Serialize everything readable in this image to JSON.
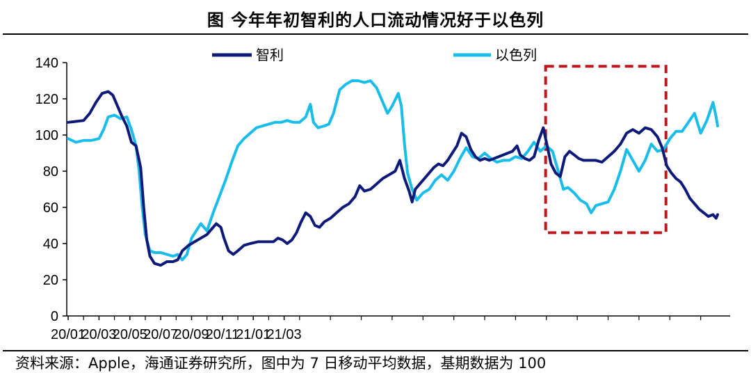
{
  "title": "图 今年年初智利的人口流动情况好于以色列",
  "source": "资料来源：Apple，海通证券研究所，图中为 7 日移动平均数据，基期数据为 100",
  "chart_data": {
    "type": "line",
    "title": "图 今年年初智利的人口流动情况好于以色列",
    "xlabel": "",
    "ylabel": "",
    "ylim": [
      0,
      140
    ],
    "yticks": [
      0,
      20,
      40,
      60,
      80,
      100,
      120,
      140
    ],
    "xtick_labels": [
      "20/01",
      "20/03",
      "20/05",
      "20/07",
      "20/09",
      "20/11",
      "21/01",
      "21/03"
    ],
    "grid": false,
    "legend_placement": "top",
    "highlight_box": {
      "x_start": "20/12",
      "x_end": "21/02",
      "y_range": [
        46,
        138
      ],
      "color": "#c0161c",
      "style": "dashed"
    },
    "series": [
      {
        "name": "智利",
        "color": "#0d1a7a",
        "points": [
          [
            0.0,
            107
          ],
          [
            0.5,
            107.5
          ],
          [
            1.0,
            108
          ],
          [
            1.4,
            112
          ],
          [
            1.8,
            118
          ],
          [
            2.2,
            123
          ],
          [
            2.6,
            124
          ],
          [
            2.9,
            122
          ],
          [
            3.2,
            116
          ],
          [
            3.5,
            110
          ],
          [
            3.8,
            105
          ],
          [
            4.1,
            96
          ],
          [
            4.4,
            94
          ],
          [
            4.7,
            82
          ],
          [
            4.9,
            60
          ],
          [
            5.1,
            42
          ],
          [
            5.3,
            33
          ],
          [
            5.6,
            29
          ],
          [
            6.0,
            28
          ],
          [
            6.4,
            30
          ],
          [
            6.8,
            30
          ],
          [
            7.1,
            31
          ],
          [
            7.4,
            36
          ],
          [
            7.8,
            39
          ],
          [
            8.2,
            41
          ],
          [
            8.6,
            43
          ],
          [
            9.0,
            45
          ],
          [
            9.3,
            48
          ],
          [
            9.6,
            51
          ],
          [
            9.9,
            49
          ],
          [
            10.1,
            43
          ],
          [
            10.4,
            36
          ],
          [
            10.7,
            34
          ],
          [
            11.0,
            36
          ],
          [
            11.4,
            39
          ],
          [
            11.8,
            40
          ],
          [
            12.3,
            41
          ],
          [
            12.8,
            41
          ],
          [
            13.3,
            41
          ],
          [
            13.6,
            43
          ],
          [
            13.9,
            42
          ],
          [
            14.2,
            40
          ],
          [
            14.5,
            42
          ],
          [
            14.8,
            46
          ],
          [
            15.1,
            52
          ],
          [
            15.4,
            57
          ],
          [
            15.7,
            55
          ],
          [
            16.0,
            50
          ],
          [
            16.3,
            49
          ],
          [
            16.6,
            52
          ],
          [
            17.0,
            54
          ],
          [
            17.4,
            57
          ],
          [
            17.8,
            60
          ],
          [
            18.2,
            62
          ],
          [
            18.6,
            66
          ],
          [
            18.9,
            72
          ],
          [
            19.2,
            69
          ],
          [
            19.6,
            70
          ],
          [
            20.0,
            73
          ],
          [
            20.4,
            76
          ],
          [
            20.8,
            78
          ],
          [
            21.2,
            80
          ],
          [
            21.5,
            86
          ],
          [
            21.8,
            76
          ],
          [
            22.1,
            69
          ],
          [
            22.3,
            63
          ],
          [
            22.5,
            70
          ],
          [
            22.8,
            73
          ],
          [
            23.1,
            76
          ],
          [
            23.4,
            79
          ],
          [
            23.7,
            82
          ],
          [
            24.0,
            84
          ],
          [
            24.3,
            83
          ],
          [
            24.6,
            86
          ],
          [
            24.9,
            90
          ],
          [
            25.2,
            94
          ],
          [
            25.5,
            101
          ],
          [
            25.8,
            99
          ],
          [
            26.1,
            92
          ],
          [
            26.4,
            88
          ],
          [
            26.7,
            86
          ],
          [
            27.0,
            87
          ],
          [
            27.3,
            86
          ],
          [
            27.6,
            87
          ],
          [
            27.9,
            88
          ],
          [
            28.2,
            89
          ],
          [
            28.5,
            90
          ],
          [
            28.8,
            91
          ],
          [
            29.1,
            94
          ],
          [
            29.3,
            89
          ],
          [
            29.6,
            87
          ],
          [
            29.9,
            86
          ],
          [
            30.2,
            88
          ],
          [
            30.5,
            97
          ],
          [
            30.8,
            104
          ],
          [
            31.0,
            96
          ],
          [
            31.3,
            84
          ],
          [
            31.6,
            79
          ],
          [
            31.9,
            77
          ],
          [
            32.2,
            88
          ],
          [
            32.5,
            91
          ],
          [
            32.8,
            89
          ],
          [
            33.1,
            87
          ],
          [
            33.4,
            86
          ],
          [
            33.8,
            86
          ],
          [
            34.2,
            86
          ],
          [
            34.6,
            85
          ],
          [
            35.0,
            88
          ],
          [
            35.4,
            91
          ],
          [
            35.8,
            95
          ],
          [
            36.2,
            101
          ],
          [
            36.6,
            103
          ],
          [
            37.0,
            101
          ],
          [
            37.4,
            104
          ],
          [
            37.8,
            103
          ],
          [
            38.2,
            99
          ],
          [
            38.5,
            93
          ],
          [
            38.8,
            83
          ],
          [
            39.1,
            79
          ],
          [
            39.4,
            76
          ],
          [
            39.7,
            74
          ],
          [
            40.0,
            70
          ],
          [
            40.3,
            65
          ],
          [
            40.6,
            62
          ],
          [
            40.9,
            59
          ],
          [
            41.2,
            57
          ],
          [
            41.5,
            55
          ],
          [
            41.8,
            56
          ],
          [
            42.0,
            54
          ],
          [
            42.1,
            56
          ]
        ]
      },
      {
        "name": "以色列",
        "color": "#19bdea",
        "points": [
          [
            0.0,
            98
          ],
          [
            0.5,
            96
          ],
          [
            1.0,
            97
          ],
          [
            1.5,
            97
          ],
          [
            2.0,
            98
          ],
          [
            2.3,
            103
          ],
          [
            2.6,
            110
          ],
          [
            3.0,
            111
          ],
          [
            3.4,
            109
          ],
          [
            3.8,
            110
          ],
          [
            4.1,
            103
          ],
          [
            4.4,
            94
          ],
          [
            4.6,
            80
          ],
          [
            4.8,
            60
          ],
          [
            5.0,
            45
          ],
          [
            5.3,
            36
          ],
          [
            5.6,
            35
          ],
          [
            6.0,
            35
          ],
          [
            6.4,
            34
          ],
          [
            6.8,
            33
          ],
          [
            7.1,
            34
          ],
          [
            7.4,
            31
          ],
          [
            7.7,
            34
          ],
          [
            8.0,
            43
          ],
          [
            8.3,
            47
          ],
          [
            8.6,
            51
          ],
          [
            9.0,
            47
          ],
          [
            9.4,
            57
          ],
          [
            9.8,
            66
          ],
          [
            10.2,
            75
          ],
          [
            10.6,
            85
          ],
          [
            11.0,
            94
          ],
          [
            11.4,
            98
          ],
          [
            11.8,
            101
          ],
          [
            12.2,
            104
          ],
          [
            12.6,
            105
          ],
          [
            13.0,
            106
          ],
          [
            13.4,
            107
          ],
          [
            13.8,
            107
          ],
          [
            14.2,
            108
          ],
          [
            14.6,
            107
          ],
          [
            15.0,
            107
          ],
          [
            15.4,
            110
          ],
          [
            15.7,
            117
          ],
          [
            15.9,
            107
          ],
          [
            16.2,
            104
          ],
          [
            16.6,
            105
          ],
          [
            16.9,
            106
          ],
          [
            17.2,
            112
          ],
          [
            17.6,
            125
          ],
          [
            18.0,
            128
          ],
          [
            18.4,
            130
          ],
          [
            18.8,
            130
          ],
          [
            19.2,
            129
          ],
          [
            19.6,
            130
          ],
          [
            20.0,
            126
          ],
          [
            20.4,
            118
          ],
          [
            20.7,
            112
          ],
          [
            21.0,
            116
          ],
          [
            21.4,
            123
          ],
          [
            21.6,
            116
          ],
          [
            21.8,
            95
          ],
          [
            22.0,
            79
          ],
          [
            22.3,
            70
          ],
          [
            22.6,
            64
          ],
          [
            23.0,
            68
          ],
          [
            23.4,
            70
          ],
          [
            23.8,
            75
          ],
          [
            24.2,
            78
          ],
          [
            24.6,
            75
          ],
          [
            25.0,
            80
          ],
          [
            25.4,
            87
          ],
          [
            25.8,
            93
          ],
          [
            26.2,
            88
          ],
          [
            26.6,
            87
          ],
          [
            27.0,
            90
          ],
          [
            27.4,
            87
          ],
          [
            27.8,
            85
          ],
          [
            28.2,
            86
          ],
          [
            28.6,
            86
          ],
          [
            29.0,
            88
          ],
          [
            29.4,
            87
          ],
          [
            29.8,
            91
          ],
          [
            30.2,
            96
          ],
          [
            30.6,
            91
          ],
          [
            31.0,
            94
          ],
          [
            31.4,
            91
          ],
          [
            31.8,
            79
          ],
          [
            32.1,
            70
          ],
          [
            32.4,
            71
          ],
          [
            32.8,
            68
          ],
          [
            33.2,
            64
          ],
          [
            33.6,
            62
          ],
          [
            33.9,
            57
          ],
          [
            34.2,
            61
          ],
          [
            34.6,
            62
          ],
          [
            35.0,
            63
          ],
          [
            35.4,
            70
          ],
          [
            35.8,
            80
          ],
          [
            36.2,
            92
          ],
          [
            36.6,
            86
          ],
          [
            37.0,
            80
          ],
          [
            37.4,
            86
          ],
          [
            37.8,
            95
          ],
          [
            38.2,
            91
          ],
          [
            38.6,
            92
          ],
          [
            39.0,
            98
          ],
          [
            39.4,
            102
          ],
          [
            39.8,
            102
          ],
          [
            40.2,
            107
          ],
          [
            40.6,
            112
          ],
          [
            41.0,
            101
          ],
          [
            41.4,
            108
          ],
          [
            41.8,
            118
          ],
          [
            42.0,
            110
          ],
          [
            42.1,
            105
          ]
        ]
      }
    ]
  }
}
